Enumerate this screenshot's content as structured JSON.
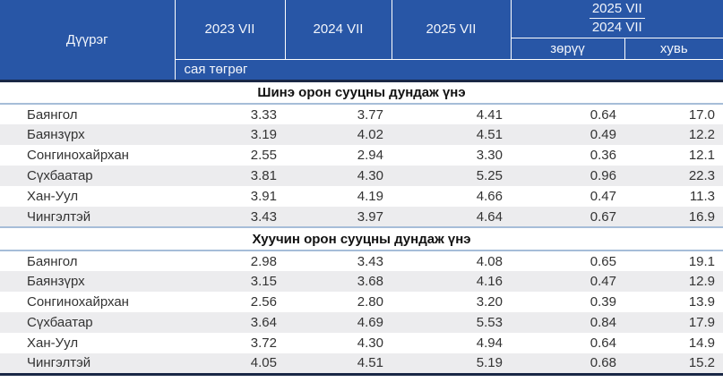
{
  "table": {
    "header": {
      "district": "Дүүрэг",
      "col_2023": "2023 VII",
      "col_2024": "2024 VII",
      "col_2025": "2025 VII",
      "ratio_numerator": "2025 VII",
      "ratio_denominator": "2024 VII",
      "diff": "зөрүү",
      "percent": "хувь",
      "unit": "сая төгрөг"
    },
    "sections": [
      {
        "title": "Шинэ орон сууцны дундаж үнэ",
        "rows": [
          {
            "district": "Баянгол",
            "values": [
              "3.33",
              "3.77",
              "4.41",
              "0.64",
              "17.0"
            ]
          },
          {
            "district": "Баянзүрх",
            "values": [
              "3.19",
              "4.02",
              "4.51",
              "0.49",
              "12.2"
            ]
          },
          {
            "district": "Сонгинохайрхан",
            "values": [
              "2.55",
              "2.94",
              "3.30",
              "0.36",
              "12.1"
            ]
          },
          {
            "district": "Сүхбаатар",
            "values": [
              "3.81",
              "4.30",
              "5.25",
              "0.96",
              "22.3"
            ]
          },
          {
            "district": "Хан-Уул",
            "values": [
              "3.91",
              "4.19",
              "4.66",
              "0.47",
              "11.3"
            ]
          },
          {
            "district": "Чингэлтэй",
            "values": [
              "3.43",
              "3.97",
              "4.64",
              "0.67",
              "16.9"
            ]
          }
        ]
      },
      {
        "title": "Хуучин орон сууцны дундаж үнэ",
        "rows": [
          {
            "district": "Баянгол",
            "values": [
              "2.98",
              "3.43",
              "4.08",
              "0.65",
              "19.1"
            ]
          },
          {
            "district": "Баянзүрх",
            "values": [
              "3.15",
              "3.68",
              "4.16",
              "0.47",
              "12.9"
            ]
          },
          {
            "district": "Сонгинохайрхан",
            "values": [
              "2.56",
              "2.80",
              "3.20",
              "0.39",
              "13.9"
            ]
          },
          {
            "district": "Сүхбаатар",
            "values": [
              "3.64",
              "4.69",
              "5.53",
              "0.84",
              "17.9"
            ]
          },
          {
            "district": "Хан-Уул",
            "values": [
              "3.72",
              "4.30",
              "4.94",
              "0.64",
              "14.9"
            ]
          },
          {
            "district": "Чингэлтэй",
            "values": [
              "4.05",
              "4.51",
              "5.19",
              "0.68",
              "15.2"
            ]
          }
        ]
      }
    ]
  },
  "colors": {
    "header_bg": "#2856a6",
    "header_line": "#ffffff",
    "dark_line": "#192745",
    "section_line": "#a6bdd8",
    "stripe": "#ececee"
  }
}
